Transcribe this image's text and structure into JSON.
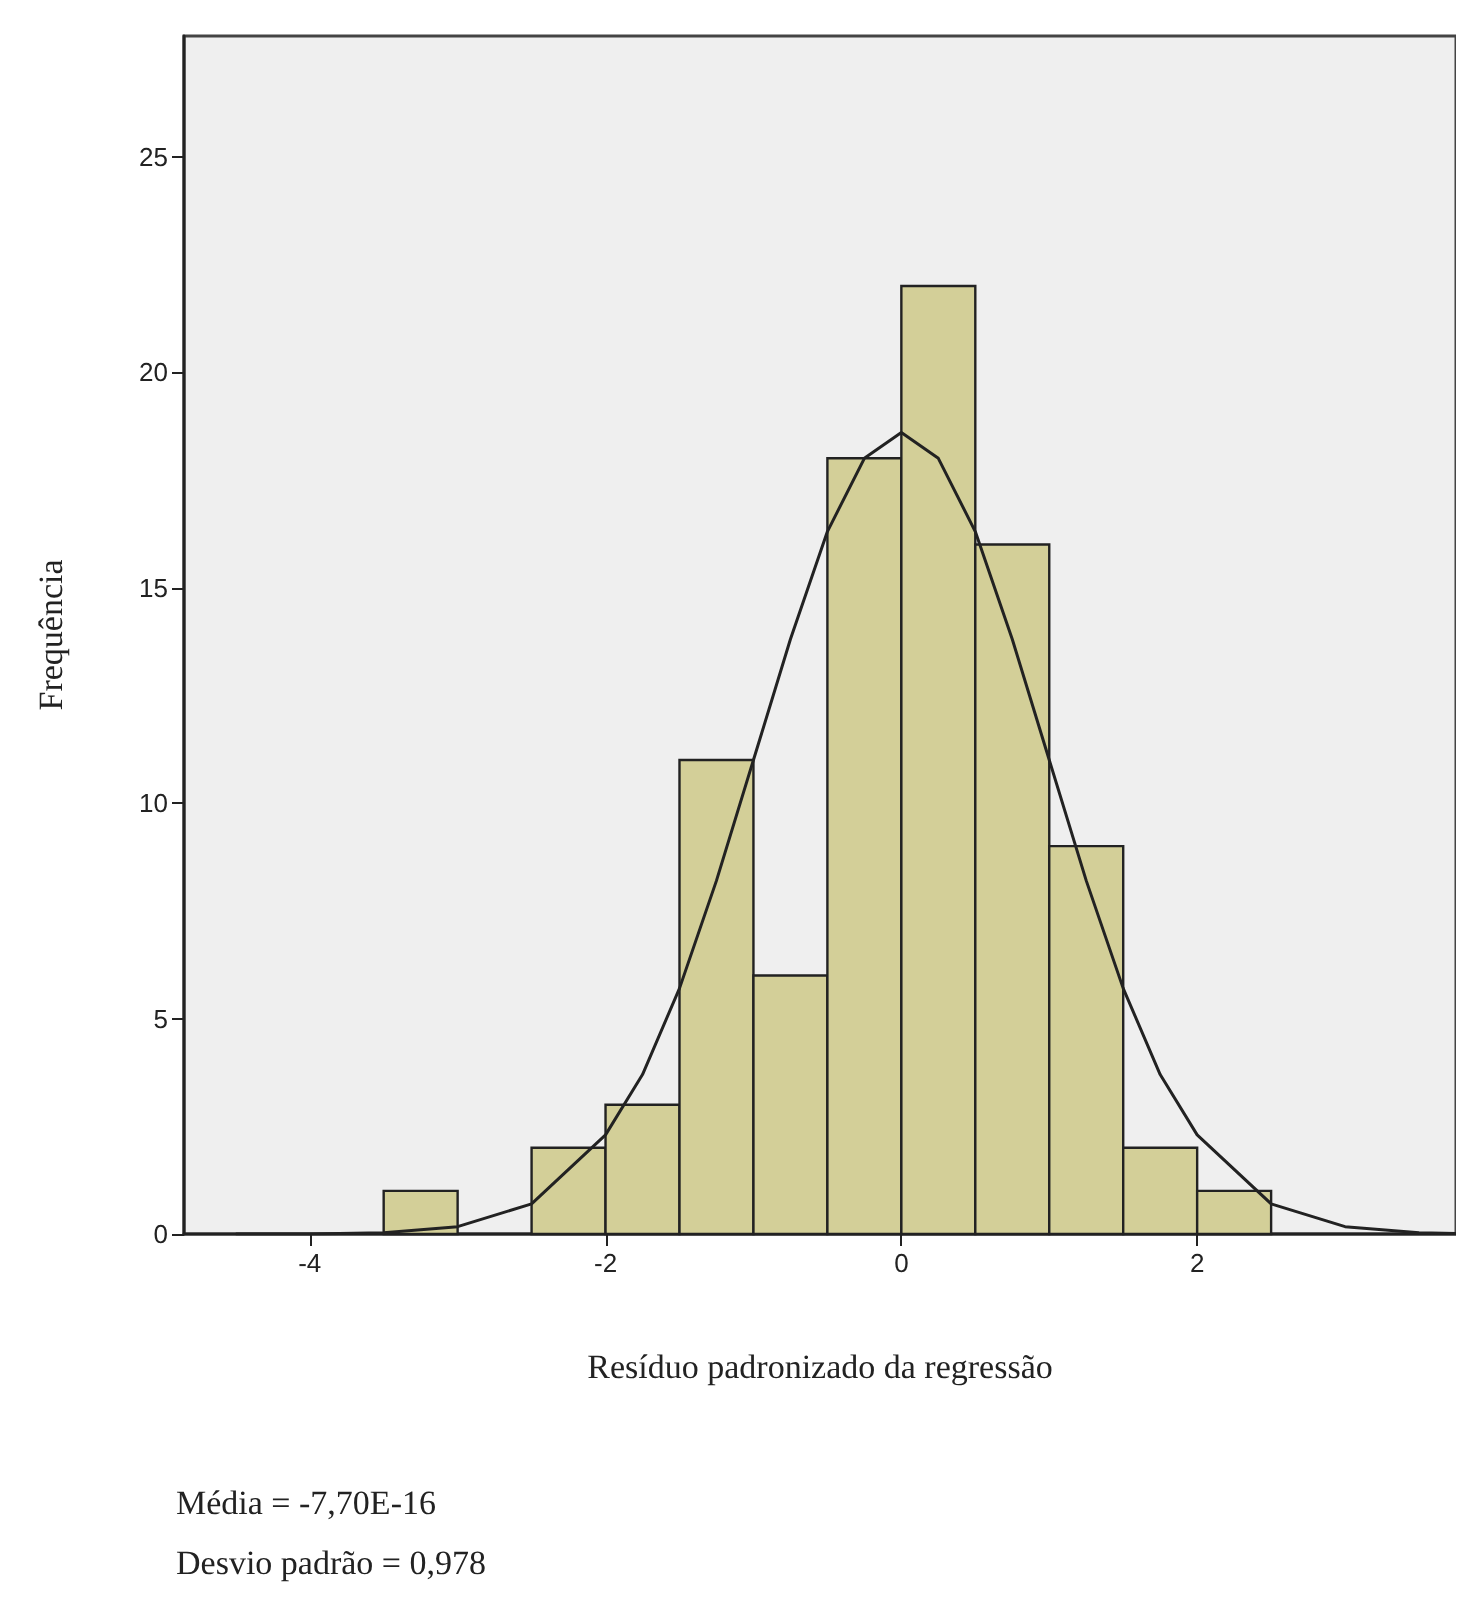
{
  "chart_data": {
    "type": "histogram",
    "xlabel": "Resíduo padronizado da regressão",
    "ylabel": "Frequência",
    "bins": [
      -3.5,
      -3,
      -2.5,
      -2,
      -1.5,
      -1,
      -0.5,
      0,
      0.5,
      1,
      1.5,
      2,
      2.5
    ],
    "values": [
      1,
      0,
      2,
      3,
      11,
      6,
      18,
      22,
      16,
      9,
      2,
      1
    ],
    "color": "#d3cf98",
    "series": [
      {
        "type": "line",
        "color": "#222222",
        "x": [
          -4.5,
          -4,
          -3.5,
          -3,
          -2.5,
          -2,
          -1.75,
          -1.5,
          -1.25,
          -1,
          -0.75,
          -0.5,
          -0.25,
          0,
          0.25,
          0.5,
          0.75,
          1,
          1.25,
          1.5,
          1.75,
          2,
          2.5,
          3,
          3.5,
          3.75
        ],
        "values": [
          0,
          0,
          0.03,
          0.17,
          0.7,
          2.3,
          3.7,
          5.7,
          8.2,
          11,
          13.8,
          16.3,
          18,
          18.6,
          18,
          16.3,
          13.8,
          11,
          8.2,
          5.7,
          3.7,
          2.3,
          0.7,
          0.17,
          0.03,
          0.01
        ]
      }
    ],
    "xlim": [
      -4.85,
      3.75
    ],
    "xticks": [
      -4,
      -2,
      0,
      2
    ],
    "ylim": [
      0,
      27.8
    ],
    "yticks": [
      0,
      5,
      10,
      15,
      20,
      25
    ],
    "grid": false,
    "annotations": [
      "Média = -7,70E-16",
      "Desvio padrão = 0,978"
    ]
  }
}
